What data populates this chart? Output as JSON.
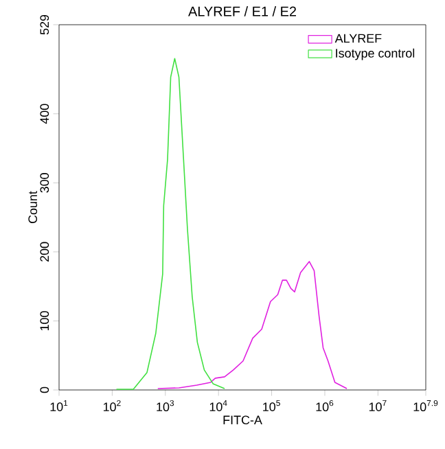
{
  "chart_data": {
    "type": "line",
    "title": "ALYREF / E1 / E2",
    "xlabel": "FITC-A",
    "ylabel": "Count",
    "log": "x",
    "xlim": [
      10,
      79432823
    ],
    "xticks": [
      {
        "value": 10,
        "label": "10$^{1}$"
      },
      {
        "value": 100,
        "label": "10$^{2}$"
      },
      {
        "value": 1000,
        "label": "10$^{3}$"
      },
      {
        "value": 10000,
        "label": "10$^{4}$"
      },
      {
        "value": 100000,
        "label": "10$^{5}$"
      },
      {
        "value": 1000000,
        "label": "10$^{6}$"
      },
      {
        "value": 10000000,
        "label": "10$^{7}$"
      },
      {
        "value": 79432823,
        "label": "10$^{7.9}$"
      }
    ],
    "ylim": [
      0,
      529
    ],
    "yticks": [
      0,
      100,
      200,
      300,
      400,
      529
    ],
    "grid": false,
    "legend": "top right",
    "marker": "none",
    "line_style": "solid",
    "series": [
      {
        "name": "ALYREF",
        "color": "#e020e0",
        "x": [
          720,
          1800,
          3900,
          7100,
          8700,
          13000,
          19000,
          29000,
          44000,
          65000,
          95000,
          130000,
          160000,
          190000,
          230000,
          270000,
          350000,
          510000,
          630000,
          780000,
          930000,
          1150000,
          1550000,
          2600000
        ],
        "values": [
          2,
          3,
          7,
          11,
          17,
          19,
          29,
          42,
          75,
          88,
          128,
          138,
          159,
          159,
          147,
          142,
          170,
          186,
          173,
          107,
          61,
          42,
          11,
          2
        ]
      },
      {
        "name": "Isotype control",
        "color": "#40e040",
        "x": [
          120,
          250,
          450,
          660,
          890,
          930,
          1100,
          1260,
          1500,
          1800,
          2200,
          2600,
          3200,
          4000,
          5400,
          7900,
          13000
        ],
        "values": [
          1,
          1,
          25,
          82,
          168,
          267,
          334,
          453,
          480,
          453,
          334,
          234,
          135,
          69,
          29,
          9,
          2
        ]
      }
    ]
  }
}
